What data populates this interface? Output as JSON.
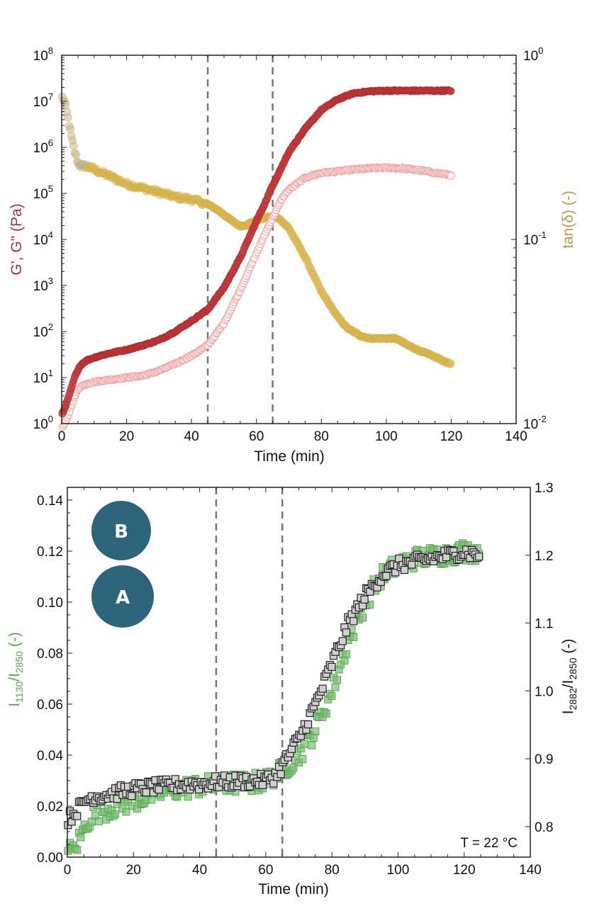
{
  "colors": {
    "g_prime": "#c0393b",
    "g_double_prime": "#f0a3a3",
    "tan_delta": "#d9b84e",
    "tan_delta_early": "#c9b98a",
    "i1130": "#7bbf74",
    "i2882": "#d0d0d0",
    "badge": "#2c6479",
    "dashed": "#777777"
  },
  "badges": [
    {
      "label": "B"
    },
    {
      "label": "A"
    }
  ],
  "chart_data": [
    {
      "type": "scatter",
      "title": "",
      "xlabel": "Time (min)",
      "ylabel": "G', G\" (Pa)",
      "ylabel_right": "tan(δ) (-)",
      "xlim": [
        0,
        140
      ],
      "ylim": [
        1,
        100000000
      ],
      "yscale": "log",
      "ylim_right": [
        0.01,
        1
      ],
      "yscale_right": "log",
      "xticks": [
        "0",
        "20",
        "40",
        "60",
        "80",
        "100",
        "120",
        "140"
      ],
      "yticks": [
        {
          "base": "10",
          "exp": "0"
        },
        {
          "base": "10",
          "exp": "1"
        },
        {
          "base": "10",
          "exp": "2"
        },
        {
          "base": "10",
          "exp": "3"
        },
        {
          "base": "10",
          "exp": "4"
        },
        {
          "base": "10",
          "exp": "5"
        },
        {
          "base": "10",
          "exp": "6"
        },
        {
          "base": "10",
          "exp": "7"
        },
        {
          "base": "10",
          "exp": "8"
        }
      ],
      "yticks_right": [
        {
          "base": "10",
          "exp": "-2"
        },
        {
          "base": "10",
          "exp": "-1"
        },
        {
          "base": "10",
          "exp": "0"
        }
      ],
      "vlines": [
        45,
        65
      ],
      "grid": false,
      "series": [
        {
          "name": "G'",
          "axis": "left",
          "marker": "filled-circle",
          "x": [
            0,
            1,
            2,
            3,
            4,
            5,
            6,
            7,
            8,
            10,
            12,
            15,
            20,
            25,
            30,
            35,
            40,
            45,
            50,
            55,
            60,
            63,
            65,
            68,
            70,
            75,
            80,
            85,
            90,
            95,
            100,
            110,
            120
          ],
          "y": [
            1.5,
            2.2,
            3.5,
            6,
            10,
            15,
            19,
            22,
            24,
            27,
            30,
            34,
            40,
            50,
            65,
            100,
            170,
            300,
            900,
            4000,
            25000,
            70000,
            150000,
            400000,
            800000,
            2500000,
            6500000,
            11000000,
            15000000,
            16500000,
            17000000,
            17000000,
            17000000
          ]
        },
        {
          "name": "G\"",
          "axis": "left",
          "marker": "open-circle",
          "x": [
            0,
            1,
            2,
            3,
            4,
            5,
            6,
            8,
            10,
            12,
            15,
            20,
            25,
            30,
            35,
            40,
            45,
            50,
            55,
            60,
            63,
            65,
            68,
            70,
            75,
            80,
            85,
            90,
            95,
            100,
            105,
            110,
            115,
            120
          ],
          "y": [
            0.8,
            1,
            1.5,
            2.5,
            4,
            5.5,
            6.5,
            7.5,
            8,
            8.5,
            9,
            10,
            11,
            14,
            20,
            30,
            50,
            150,
            800,
            5000,
            15000,
            30000,
            80000,
            120000,
            220000,
            280000,
            300000,
            330000,
            350000,
            360000,
            350000,
            320000,
            280000,
            250000
          ]
        },
        {
          "name": "tan(δ)",
          "axis": "right",
          "marker": "filled-circle",
          "x": [
            0,
            1,
            2,
            3,
            4,
            5,
            6,
            8,
            10,
            15,
            20,
            25,
            30,
            35,
            40,
            45,
            48,
            52,
            55,
            57,
            60,
            63,
            65,
            67,
            70,
            75,
            80,
            85,
            88,
            92,
            95,
            100,
            103,
            106,
            110,
            115,
            120
          ],
          "y": [
            0.6,
            0.55,
            0.45,
            0.36,
            0.3,
            0.26,
            0.25,
            0.25,
            0.24,
            0.22,
            0.2,
            0.19,
            0.18,
            0.17,
            0.165,
            0.155,
            0.145,
            0.128,
            0.118,
            0.12,
            0.127,
            0.132,
            0.133,
            0.13,
            0.115,
            0.08,
            0.052,
            0.038,
            0.033,
            0.03,
            0.029,
            0.029,
            0.029,
            0.027,
            0.025,
            0.023,
            0.021
          ]
        }
      ]
    },
    {
      "type": "scatter",
      "title": "",
      "xlabel": "Time (min)",
      "ylabel": {
        "main": "I",
        "sub1": "1130",
        "mid": "/I",
        "sub2": "2850",
        "suffix": " (-)"
      },
      "ylabel_right": {
        "main": "I",
        "sub1": "2882",
        "mid": "/I",
        "sub2": "2850",
        "suffix": " (-)"
      },
      "xlim": [
        0,
        140
      ],
      "ylim": [
        0,
        0.145
      ],
      "ylim_right": [
        0.755,
        1.3
      ],
      "xticks": [
        "0",
        "20",
        "40",
        "60",
        "80",
        "100",
        "120",
        "140"
      ],
      "yticks": [
        "0.00",
        "0.02",
        "0.04",
        "0.06",
        "0.08",
        "0.10",
        "0.12",
        "0.14"
      ],
      "yticks_right": [
        "0.8",
        "0.9",
        "1.0",
        "1.1",
        "1.2",
        "1.3"
      ],
      "vlines": [
        45,
        65
      ],
      "annotation": "T = 22 °C",
      "grid": false,
      "series": [
        {
          "name": "I1130/I2850",
          "axis": "left",
          "marker": "square",
          "x": [
            0,
            2,
            4,
            6,
            8,
            10,
            15,
            20,
            25,
            30,
            35,
            40,
            45,
            50,
            55,
            60,
            65,
            70,
            75,
            80,
            85,
            90,
            95,
            100,
            105,
            110,
            115,
            120,
            125
          ],
          "y": [
            0.002,
            0.003,
            0.008,
            0.014,
            0.017,
            0.018,
            0.02,
            0.022,
            0.024,
            0.026,
            0.027,
            0.028,
            0.028,
            0.029,
            0.029,
            0.03,
            0.034,
            0.04,
            0.05,
            0.065,
            0.085,
            0.1,
            0.11,
            0.115,
            0.117,
            0.118,
            0.119,
            0.12,
            0.12
          ]
        },
        {
          "name": "I2882/I2850",
          "axis": "right",
          "marker": "square",
          "x": [
            0,
            2,
            4,
            6,
            8,
            10,
            15,
            20,
            25,
            30,
            35,
            40,
            45,
            50,
            55,
            60,
            63,
            65,
            70,
            75,
            80,
            85,
            90,
            95,
            100,
            105,
            110,
            115,
            120,
            125
          ],
          "y": [
            0.81,
            0.82,
            0.83,
            0.84,
            0.845,
            0.845,
            0.85,
            0.855,
            0.858,
            0.86,
            0.862,
            0.863,
            0.865,
            0.866,
            0.867,
            0.868,
            0.875,
            0.89,
            0.93,
            0.98,
            1.04,
            1.1,
            1.14,
            1.17,
            1.185,
            1.19,
            1.195,
            1.2,
            1.205,
            1.2
          ]
        }
      ]
    }
  ]
}
